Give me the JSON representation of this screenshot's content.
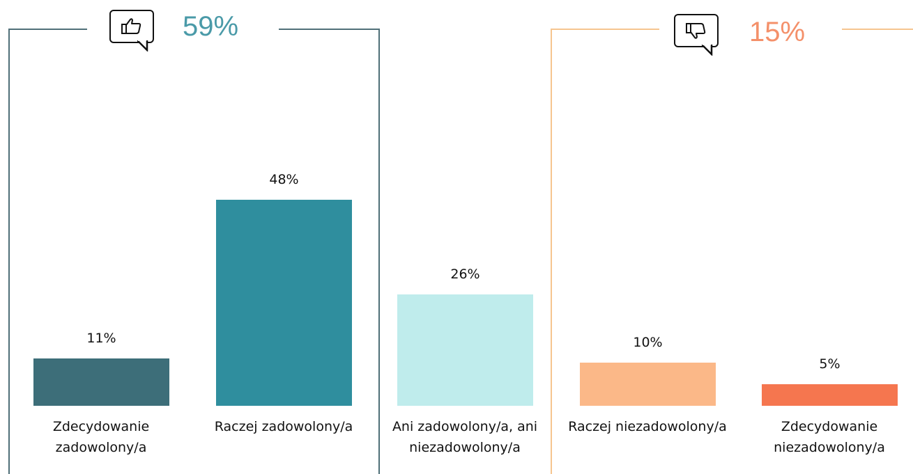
{
  "summary": {
    "positive": {
      "value": "59%",
      "icon": "thumbs-up-icon",
      "color": "#4a9aa8"
    },
    "negative": {
      "value": "15%",
      "icon": "thumbs-down-icon",
      "color": "#f4906a"
    }
  },
  "chart_data": {
    "type": "bar",
    "title": "",
    "xlabel": "",
    "ylabel": "",
    "ylim": [
      0,
      48
    ],
    "grid": false,
    "categories": [
      [
        "Zdecydowanie",
        "zadowolony/a"
      ],
      [
        "Raczej zadowolony/a"
      ],
      [
        "Ani zadowolony/a, ani",
        "niezadowolony/a"
      ],
      [
        "Raczej niezadowolony/a"
      ],
      [
        "Zdecydowanie",
        "niezadowolony/a"
      ]
    ],
    "values": [
      11,
      48,
      26,
      10,
      5
    ],
    "value_labels": [
      "11%",
      "48%",
      "26%",
      "10%",
      "5%"
    ],
    "colors": [
      "#3d6e79",
      "#2f8e9e",
      "#bfecec",
      "#fbb888",
      "#f5764f"
    ]
  }
}
